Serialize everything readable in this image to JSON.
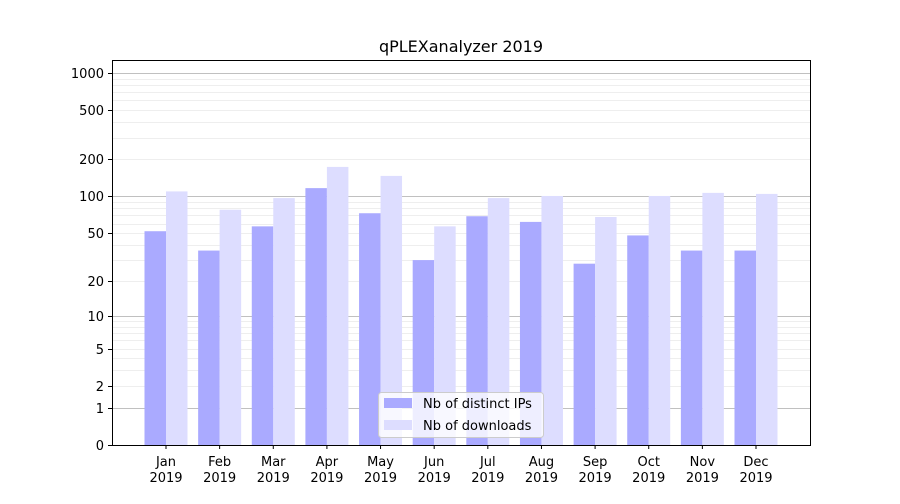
{
  "chart_data": {
    "type": "bar",
    "title": "qPLEXanalyzer 2019",
    "xlabel": "",
    "ylabel": "",
    "yscale": "log10(y+1)",
    "ylim": [
      0,
      1273
    ],
    "yticks": [
      0,
      1,
      2,
      5,
      10,
      20,
      50,
      100,
      200,
      500,
      1000
    ],
    "grid": true,
    "legend_position": "lower-center",
    "categories": [
      [
        "Jan",
        "2019"
      ],
      [
        "Feb",
        "2019"
      ],
      [
        "Mar",
        "2019"
      ],
      [
        "Apr",
        "2019"
      ],
      [
        "May",
        "2019"
      ],
      [
        "Jun",
        "2019"
      ],
      [
        "Jul",
        "2019"
      ],
      [
        "Aug",
        "2019"
      ],
      [
        "Sep",
        "2019"
      ],
      [
        "Oct",
        "2019"
      ],
      [
        "Nov",
        "2019"
      ],
      [
        "Dec",
        "2019"
      ]
    ],
    "series": [
      {
        "name": "Nb of distinct IPs",
        "color": "#aaaaff",
        "values": [
          52,
          36,
          57,
          117,
          73,
          30,
          69,
          62,
          28,
          48,
          36,
          36
        ]
      },
      {
        "name": "Nb of downloads",
        "color": "#ddddff",
        "values": [
          110,
          78,
          97,
          174,
          147,
          57,
          97,
          101,
          68,
          101,
          107,
          105
        ]
      }
    ]
  }
}
